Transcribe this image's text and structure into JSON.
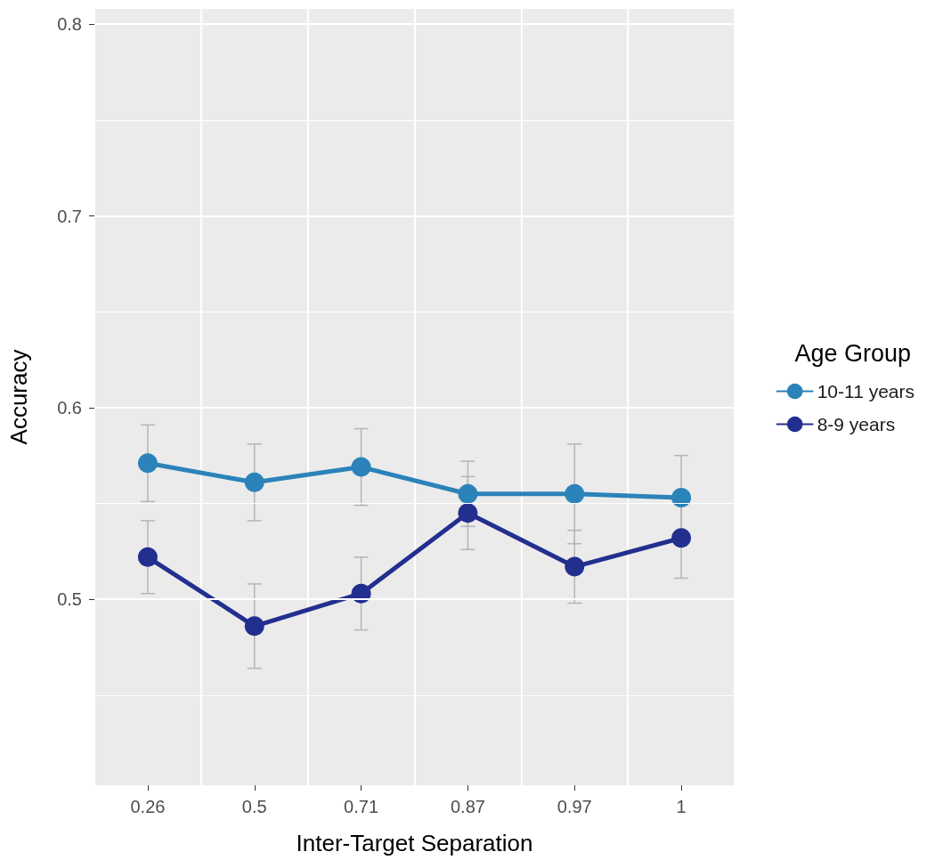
{
  "chart_data": {
    "type": "line",
    "xlabel": "Inter-Target Separation",
    "ylabel": "Accuracy",
    "legend_title": "Age Group",
    "legend": "right",
    "grid": true,
    "marker": "circle",
    "line_style": "solid",
    "categories": [
      "0.26",
      "0.5",
      "0.71",
      "0.87",
      "0.97",
      "1"
    ],
    "ylim": [
      0.403,
      0.808
    ],
    "yticks": [
      {
        "value": 0.45,
        "label": null
      },
      0.5,
      {
        "value": 0.55,
        "label": null
      },
      0.6,
      {
        "value": 0.65,
        "label": null
      },
      0.7,
      {
        "value": 0.75,
        "label": null
      },
      0.8
    ],
    "series": [
      {
        "name": "10-11 years",
        "color": "#2b83ba",
        "values": [
          0.571,
          0.561,
          0.569,
          0.555,
          0.555,
          0.553
        ],
        "errors": [
          0.02,
          0.02,
          0.02,
          0.017,
          0.026,
          0.022
        ]
      },
      {
        "name": "8-9 years",
        "color": "#232f8f",
        "values": [
          0.522,
          0.486,
          0.503,
          0.545,
          0.517,
          0.532
        ],
        "errors": [
          0.019,
          0.022,
          0.019,
          0.019,
          0.019,
          0.021
        ]
      }
    ]
  }
}
